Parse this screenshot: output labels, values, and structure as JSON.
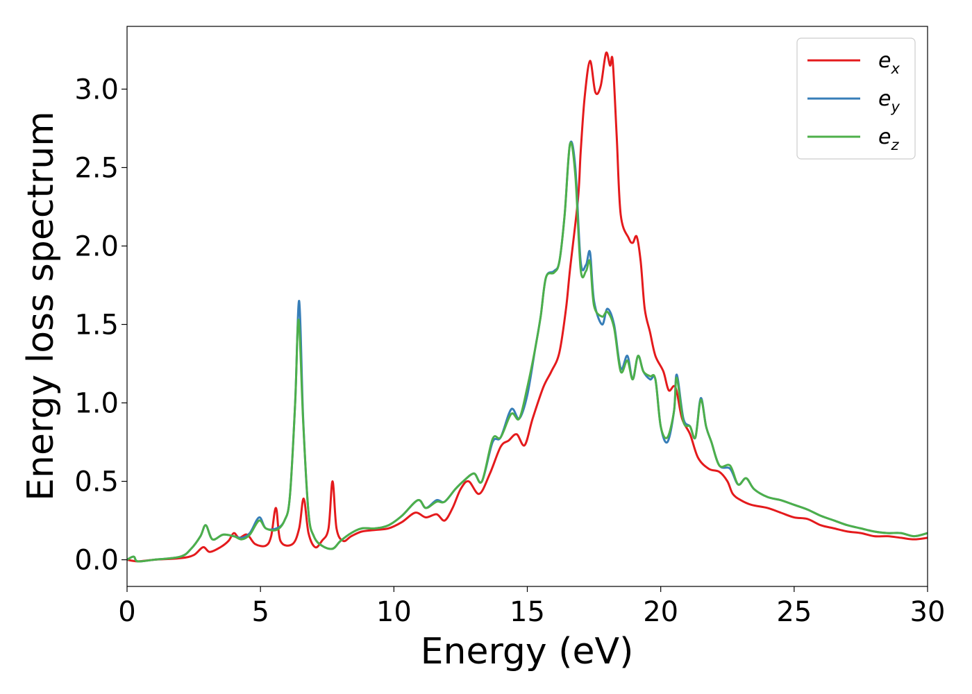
{
  "chart_data": {
    "type": "line",
    "title": "",
    "xlabel": "Energy (eV)",
    "ylabel": "Energy loss spectrum",
    "xlim": [
      0,
      30
    ],
    "ylim": [
      -0.17,
      3.4
    ],
    "xticks": [
      0,
      5,
      10,
      15,
      20,
      25,
      30
    ],
    "xtick_labels": [
      "0",
      "5",
      "10",
      "15",
      "20",
      "25",
      "30"
    ],
    "yticks": [
      0.0,
      0.5,
      1.0,
      1.5,
      2.0,
      2.5,
      3.0
    ],
    "ytick_labels": [
      "0.0",
      "0.5",
      "1.0",
      "1.5",
      "2.0",
      "2.5",
      "3.0"
    ],
    "grid": false,
    "legend_position": "top-right",
    "series": [
      {
        "name": "e_x",
        "legend_base": "e",
        "legend_sub": "x",
        "color": "#e41a1c",
        "points": [
          [
            0,
            0.0
          ],
          [
            0.4,
            -0.01
          ],
          [
            1,
            0.0
          ],
          [
            2,
            0.01
          ],
          [
            2.5,
            0.03
          ],
          [
            2.85,
            0.08
          ],
          [
            3.1,
            0.05
          ],
          [
            3.5,
            0.08
          ],
          [
            3.8,
            0.12
          ],
          [
            4.0,
            0.17
          ],
          [
            4.2,
            0.14
          ],
          [
            4.5,
            0.16
          ],
          [
            4.8,
            0.1
          ],
          [
            5.2,
            0.09
          ],
          [
            5.4,
            0.15
          ],
          [
            5.58,
            0.33
          ],
          [
            5.75,
            0.12
          ],
          [
            6.2,
            0.1
          ],
          [
            6.45,
            0.2
          ],
          [
            6.62,
            0.39
          ],
          [
            6.8,
            0.17
          ],
          [
            7.05,
            0.08
          ],
          [
            7.3,
            0.12
          ],
          [
            7.55,
            0.2
          ],
          [
            7.7,
            0.5
          ],
          [
            7.85,
            0.2
          ],
          [
            8.1,
            0.12
          ],
          [
            8.4,
            0.15
          ],
          [
            8.8,
            0.18
          ],
          [
            9.3,
            0.19
          ],
          [
            9.8,
            0.2
          ],
          [
            10.3,
            0.24
          ],
          [
            10.8,
            0.3
          ],
          [
            11.2,
            0.27
          ],
          [
            11.6,
            0.29
          ],
          [
            11.9,
            0.25
          ],
          [
            12.2,
            0.33
          ],
          [
            12.5,
            0.45
          ],
          [
            12.8,
            0.5
          ],
          [
            13.2,
            0.42
          ],
          [
            13.6,
            0.55
          ],
          [
            14.0,
            0.72
          ],
          [
            14.3,
            0.76
          ],
          [
            14.6,
            0.8
          ],
          [
            14.9,
            0.73
          ],
          [
            15.2,
            0.9
          ],
          [
            15.6,
            1.1
          ],
          [
            15.9,
            1.2
          ],
          [
            16.2,
            1.32
          ],
          [
            16.45,
            1.6
          ],
          [
            16.6,
            1.85
          ],
          [
            16.9,
            2.3
          ],
          [
            17.0,
            2.6
          ],
          [
            17.15,
            2.95
          ],
          [
            17.35,
            3.18
          ],
          [
            17.55,
            2.98
          ],
          [
            17.75,
            3.02
          ],
          [
            17.95,
            3.23
          ],
          [
            18.1,
            3.15
          ],
          [
            18.2,
            3.18
          ],
          [
            18.35,
            2.7
          ],
          [
            18.5,
            2.2
          ],
          [
            18.8,
            2.05
          ],
          [
            18.95,
            2.02
          ],
          [
            19.1,
            2.06
          ],
          [
            19.25,
            1.9
          ],
          [
            19.4,
            1.6
          ],
          [
            19.6,
            1.45
          ],
          [
            19.8,
            1.3
          ],
          [
            20.1,
            1.2
          ],
          [
            20.3,
            1.08
          ],
          [
            20.55,
            1.1
          ],
          [
            20.8,
            0.9
          ],
          [
            21.1,
            0.8
          ],
          [
            21.4,
            0.65
          ],
          [
            21.8,
            0.58
          ],
          [
            22.2,
            0.56
          ],
          [
            22.5,
            0.5
          ],
          [
            22.7,
            0.42
          ],
          [
            23.0,
            0.38
          ],
          [
            23.4,
            0.35
          ],
          [
            24.0,
            0.33
          ],
          [
            24.5,
            0.3
          ],
          [
            25.0,
            0.27
          ],
          [
            25.5,
            0.26
          ],
          [
            26.0,
            0.22
          ],
          [
            26.5,
            0.2
          ],
          [
            27.0,
            0.18
          ],
          [
            27.5,
            0.17
          ],
          [
            28.0,
            0.15
          ],
          [
            28.5,
            0.15
          ],
          [
            29.0,
            0.14
          ],
          [
            29.5,
            0.13
          ],
          [
            30,
            0.14
          ]
        ]
      },
      {
        "name": "e_y",
        "legend_base": "e",
        "legend_sub": "y",
        "color": "#377eb8",
        "points": [
          [
            0,
            0.0
          ],
          [
            0.25,
            0.02
          ],
          [
            0.4,
            -0.01
          ],
          [
            1,
            0.0
          ],
          [
            2,
            0.02
          ],
          [
            2.4,
            0.07
          ],
          [
            2.75,
            0.15
          ],
          [
            2.95,
            0.22
          ],
          [
            3.2,
            0.13
          ],
          [
            3.6,
            0.16
          ],
          [
            4.0,
            0.15
          ],
          [
            4.3,
            0.14
          ],
          [
            4.6,
            0.17
          ],
          [
            4.95,
            0.27
          ],
          [
            5.2,
            0.2
          ],
          [
            5.6,
            0.2
          ],
          [
            5.9,
            0.25
          ],
          [
            6.1,
            0.4
          ],
          [
            6.3,
            1.0
          ],
          [
            6.45,
            1.65
          ],
          [
            6.6,
            0.9
          ],
          [
            6.8,
            0.3
          ],
          [
            7.0,
            0.15
          ],
          [
            7.3,
            0.09
          ],
          [
            7.7,
            0.07
          ],
          [
            8.0,
            0.12
          ],
          [
            8.4,
            0.17
          ],
          [
            8.8,
            0.2
          ],
          [
            9.3,
            0.2
          ],
          [
            9.8,
            0.22
          ],
          [
            10.3,
            0.28
          ],
          [
            10.9,
            0.38
          ],
          [
            11.2,
            0.33
          ],
          [
            11.6,
            0.38
          ],
          [
            11.9,
            0.37
          ],
          [
            12.3,
            0.45
          ],
          [
            12.6,
            0.5
          ],
          [
            13.0,
            0.55
          ],
          [
            13.3,
            0.5
          ],
          [
            13.7,
            0.75
          ],
          [
            14.0,
            0.78
          ],
          [
            14.4,
            0.96
          ],
          [
            14.7,
            0.9
          ],
          [
            15.0,
            1.05
          ],
          [
            15.3,
            1.35
          ],
          [
            15.5,
            1.55
          ],
          [
            15.7,
            1.8
          ],
          [
            16.0,
            1.84
          ],
          [
            16.2,
            1.9
          ],
          [
            16.4,
            2.2
          ],
          [
            16.6,
            2.65
          ],
          [
            16.8,
            2.5
          ],
          [
            17.0,
            1.9
          ],
          [
            17.2,
            1.88
          ],
          [
            17.35,
            1.96
          ],
          [
            17.5,
            1.65
          ],
          [
            17.8,
            1.5
          ],
          [
            18.0,
            1.6
          ],
          [
            18.25,
            1.5
          ],
          [
            18.5,
            1.22
          ],
          [
            18.75,
            1.3
          ],
          [
            18.95,
            1.15
          ],
          [
            19.15,
            1.3
          ],
          [
            19.35,
            1.2
          ],
          [
            19.6,
            1.15
          ],
          [
            19.8,
            1.15
          ],
          [
            20.0,
            0.85
          ],
          [
            20.25,
            0.75
          ],
          [
            20.5,
            0.95
          ],
          [
            20.6,
            1.18
          ],
          [
            20.85,
            0.9
          ],
          [
            21.1,
            0.85
          ],
          [
            21.3,
            0.78
          ],
          [
            21.5,
            1.03
          ],
          [
            21.7,
            0.85
          ],
          [
            21.9,
            0.75
          ],
          [
            22.2,
            0.6
          ],
          [
            22.6,
            0.58
          ],
          [
            22.9,
            0.48
          ],
          [
            23.2,
            0.52
          ],
          [
            23.5,
            0.45
          ],
          [
            24.0,
            0.4
          ],
          [
            24.5,
            0.38
          ],
          [
            25.0,
            0.35
          ],
          [
            25.5,
            0.32
          ],
          [
            26.0,
            0.28
          ],
          [
            26.5,
            0.25
          ],
          [
            27.0,
            0.22
          ],
          [
            27.5,
            0.2
          ],
          [
            28.0,
            0.18
          ],
          [
            28.5,
            0.17
          ],
          [
            29.0,
            0.17
          ],
          [
            29.5,
            0.15
          ],
          [
            30,
            0.17
          ]
        ]
      },
      {
        "name": "e_z",
        "legend_base": "e",
        "legend_sub": "z",
        "color": "#4daf4a",
        "points": [
          [
            0,
            0.0
          ],
          [
            0.25,
            0.02
          ],
          [
            0.4,
            -0.01
          ],
          [
            1,
            0.0
          ],
          [
            2,
            0.02
          ],
          [
            2.4,
            0.07
          ],
          [
            2.75,
            0.15
          ],
          [
            2.95,
            0.22
          ],
          [
            3.2,
            0.13
          ],
          [
            3.6,
            0.16
          ],
          [
            4.0,
            0.15
          ],
          [
            4.3,
            0.13
          ],
          [
            4.6,
            0.16
          ],
          [
            4.95,
            0.25
          ],
          [
            5.2,
            0.2
          ],
          [
            5.6,
            0.19
          ],
          [
            5.9,
            0.25
          ],
          [
            6.1,
            0.4
          ],
          [
            6.3,
            1.0
          ],
          [
            6.43,
            1.53
          ],
          [
            6.6,
            0.88
          ],
          [
            6.8,
            0.3
          ],
          [
            7.0,
            0.15
          ],
          [
            7.3,
            0.09
          ],
          [
            7.7,
            0.07
          ],
          [
            8.0,
            0.12
          ],
          [
            8.4,
            0.17
          ],
          [
            8.8,
            0.2
          ],
          [
            9.3,
            0.2
          ],
          [
            9.8,
            0.22
          ],
          [
            10.3,
            0.28
          ],
          [
            10.9,
            0.38
          ],
          [
            11.2,
            0.33
          ],
          [
            11.6,
            0.37
          ],
          [
            11.9,
            0.37
          ],
          [
            12.3,
            0.45
          ],
          [
            12.6,
            0.5
          ],
          [
            13.0,
            0.55
          ],
          [
            13.3,
            0.5
          ],
          [
            13.7,
            0.77
          ],
          [
            14.0,
            0.78
          ],
          [
            14.4,
            0.93
          ],
          [
            14.7,
            0.9
          ],
          [
            15.0,
            1.1
          ],
          [
            15.3,
            1.35
          ],
          [
            15.5,
            1.55
          ],
          [
            15.7,
            1.8
          ],
          [
            16.0,
            1.83
          ],
          [
            16.2,
            1.9
          ],
          [
            16.4,
            2.2
          ],
          [
            16.6,
            2.65
          ],
          [
            16.8,
            2.45
          ],
          [
            17.0,
            1.85
          ],
          [
            17.2,
            1.84
          ],
          [
            17.35,
            1.9
          ],
          [
            17.5,
            1.62
          ],
          [
            17.8,
            1.55
          ],
          [
            18.0,
            1.58
          ],
          [
            18.25,
            1.48
          ],
          [
            18.5,
            1.2
          ],
          [
            18.75,
            1.27
          ],
          [
            18.95,
            1.15
          ],
          [
            19.15,
            1.3
          ],
          [
            19.35,
            1.2
          ],
          [
            19.6,
            1.17
          ],
          [
            19.8,
            1.15
          ],
          [
            20.0,
            0.85
          ],
          [
            20.25,
            0.78
          ],
          [
            20.5,
            0.95
          ],
          [
            20.6,
            1.16
          ],
          [
            20.85,
            0.88
          ],
          [
            21.1,
            0.85
          ],
          [
            21.3,
            0.78
          ],
          [
            21.5,
            1.02
          ],
          [
            21.7,
            0.85
          ],
          [
            21.9,
            0.75
          ],
          [
            22.2,
            0.6
          ],
          [
            22.6,
            0.6
          ],
          [
            22.9,
            0.48
          ],
          [
            23.2,
            0.52
          ],
          [
            23.5,
            0.45
          ],
          [
            24.0,
            0.4
          ],
          [
            24.5,
            0.38
          ],
          [
            25.0,
            0.35
          ],
          [
            25.5,
            0.32
          ],
          [
            26.0,
            0.28
          ],
          [
            26.5,
            0.25
          ],
          [
            27.0,
            0.22
          ],
          [
            27.5,
            0.2
          ],
          [
            28.0,
            0.18
          ],
          [
            28.5,
            0.17
          ],
          [
            29.0,
            0.17
          ],
          [
            29.5,
            0.15
          ],
          [
            30,
            0.17
          ]
        ]
      }
    ]
  }
}
